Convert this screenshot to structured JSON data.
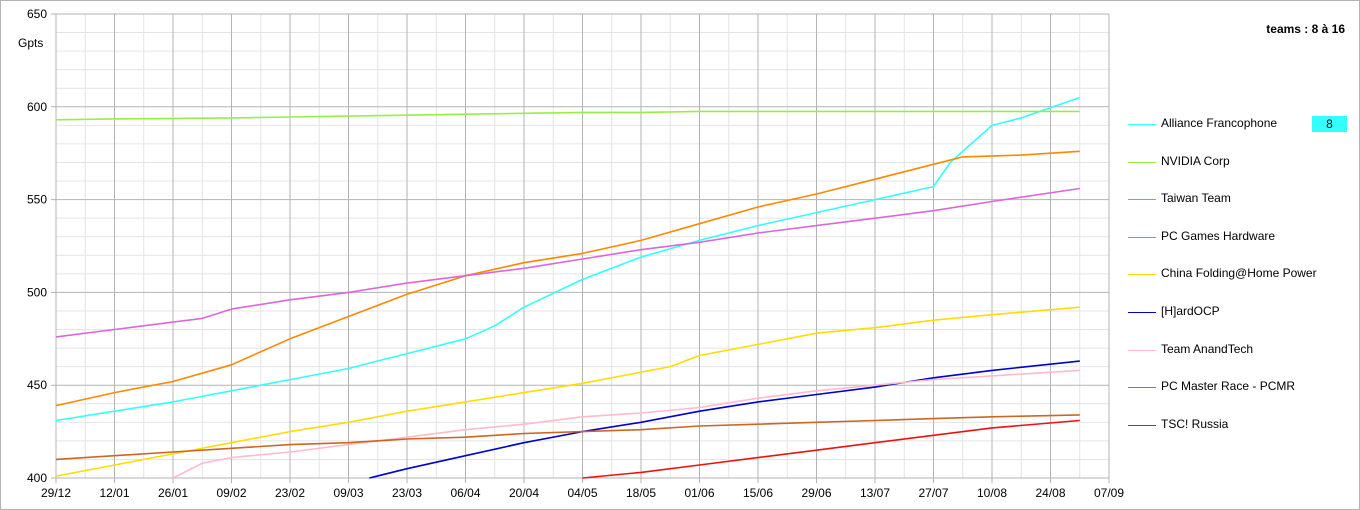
{
  "chart_data": {
    "type": "line",
    "title": "",
    "ylabel": "Gpts",
    "xlabel": "",
    "ylim": [
      400,
      650
    ],
    "y_ticks": [
      400,
      450,
      500,
      550,
      600,
      650
    ],
    "x_range": [
      0,
      252
    ],
    "x_tick_positions": [
      0,
      14,
      28,
      42,
      56,
      70,
      84,
      98,
      112,
      126,
      140,
      154,
      168,
      182,
      196,
      210,
      224,
      238,
      252
    ],
    "x_tick_labels": [
      "29/12",
      "12/01",
      "26/01",
      "09/02",
      "23/02",
      "09/03",
      "23/03",
      "06/04",
      "20/04",
      "04/05",
      "18/05",
      "01/06",
      "15/06",
      "29/06",
      "13/07",
      "27/07",
      "10/08",
      "24/08",
      "07/09"
    ],
    "grid": true,
    "legend_title": "teams : 8 à 16",
    "legend_position": "right",
    "highlight": {
      "series": "Alliance Francophone",
      "value": "8",
      "color": "#33ffff"
    },
    "series": [
      {
        "name": "Alliance Francophone",
        "color": "#33ffff",
        "x": [
          0,
          14,
          28,
          42,
          56,
          70,
          84,
          98,
          105,
          112,
          126,
          140,
          154,
          168,
          182,
          196,
          210,
          214,
          224,
          231,
          245
        ],
        "y": [
          431,
          436,
          441,
          447,
          453,
          459,
          467,
          475,
          482,
          492,
          507,
          519,
          528,
          536,
          543,
          550,
          557,
          570,
          590,
          594,
          605
        ]
      },
      {
        "name": "NVIDIA Corp",
        "color": "#99ee44",
        "x": [
          0,
          14,
          42,
          56,
          70,
          84,
          98,
          112,
          126,
          140,
          154,
          168,
          182,
          196,
          210,
          224,
          245
        ],
        "y": [
          593,
          593.5,
          594,
          594.5,
          595,
          595.5,
          596,
          596.5,
          597,
          597,
          597.5,
          597.5,
          597.5,
          597.5,
          597.5,
          597.5,
          597.5
        ]
      },
      {
        "name": "Taiwan Team",
        "color": "#ff8800",
        "x": [
          0,
          14,
          28,
          42,
          56,
          70,
          84,
          98,
          112,
          126,
          140,
          154,
          168,
          182,
          196,
          210,
          217,
          231,
          245
        ],
        "y": [
          439,
          446,
          452,
          461,
          475,
          487,
          499,
          509,
          516,
          521,
          528,
          537,
          546,
          553,
          561,
          569,
          573,
          574,
          576
        ]
      },
      {
        "name": "PC Games Hardware",
        "color": "#dd66dd",
        "x": [
          0,
          14,
          28,
          35,
          42,
          56,
          70,
          84,
          98,
          112,
          126,
          140,
          154,
          168,
          182,
          196,
          210,
          224,
          245
        ],
        "y": [
          476,
          480,
          484,
          486,
          491,
          496,
          500,
          505,
          509,
          513,
          518,
          523,
          527,
          532,
          536,
          540,
          544,
          549,
          556
        ]
      },
      {
        "name": "China Folding@Home Power",
        "color": "#ffdd00",
        "x": [
          0,
          14,
          28,
          42,
          56,
          70,
          84,
          98,
          112,
          126,
          140,
          147,
          154,
          168,
          182,
          196,
          210,
          224,
          245
        ],
        "y": [
          401,
          407,
          413,
          419,
          425,
          430,
          436,
          441,
          446,
          451,
          457,
          460,
          466,
          472,
          478,
          481,
          485,
          488,
          492
        ]
      },
      {
        "name": "[H]ardOCP",
        "color": "#0000cc",
        "x": [
          75,
          84,
          98,
          112,
          126,
          140,
          154,
          168,
          182,
          196,
          210,
          224,
          245
        ],
        "y": [
          400,
          405,
          412,
          419,
          425,
          430,
          436,
          441,
          445,
          449,
          454,
          458,
          463
        ]
      },
      {
        "name": "Team AnandTech",
        "color": "#ffbbcc",
        "x": [
          28,
          35,
          42,
          56,
          70,
          84,
          98,
          112,
          126,
          140,
          154,
          168,
          182,
          196,
          210,
          224,
          245
        ],
        "y": [
          400,
          408,
          411,
          414,
          418,
          422,
          426,
          429,
          433,
          435,
          438,
          443,
          447,
          450,
          453,
          455,
          458
        ]
      },
      {
        "name": "PC Master Race - PCMR",
        "color": "#cc6622",
        "x": [
          0,
          14,
          28,
          42,
          56,
          70,
          84,
          98,
          112,
          126,
          140,
          154,
          168,
          182,
          196,
          210,
          224,
          245
        ],
        "y": [
          410,
          412,
          414,
          416,
          418,
          419,
          421,
          422,
          424,
          425,
          426,
          428,
          429,
          430,
          431,
          432,
          433,
          434
        ]
      },
      {
        "name": "TSC! Russia",
        "color": "#ee1111",
        "x": [
          126,
          140,
          154,
          168,
          182,
          196,
          210,
          224,
          245
        ],
        "y": [
          400,
          403,
          407,
          411,
          415,
          419,
          423,
          427,
          431
        ]
      }
    ]
  }
}
